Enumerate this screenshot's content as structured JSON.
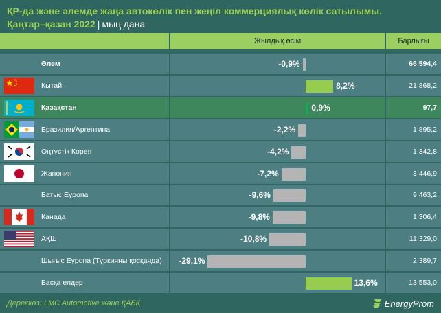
{
  "title": "ҚР-да және әлемде жаңа автокөлік пен жеңіл коммерциялық көлік сатылымы.",
  "period": "Қаңтар–қазан 2022",
  "separator": "|",
  "unit": "мың дана",
  "header": {
    "growth": "Жылдық өсім",
    "total": "Барлығы"
  },
  "source": "Дереккөз: LMC Automotive және ҚАБҚ",
  "logo_text": "EnergyProm",
  "colors": {
    "background": "#2f6660",
    "cell": "#4c7e82",
    "highlight": "#3e875c",
    "header": "#9ccf61",
    "positive_bar": "#96cd4f",
    "negative_bar": "#b4b4b4",
    "kazakhstan_bar": "#1aa55a",
    "title": "#9bd25a"
  },
  "chart_data": {
    "type": "bar",
    "title": "ҚР-да және әлемде жаңа автокөлік пен жеңіл коммерциялық көлік сатылымы.",
    "series": [
      {
        "name": "Жылдық өсім",
        "unit": "%",
        "values": [
          -0.9,
          8.2,
          0.9,
          -2.2,
          -4.2,
          -7.2,
          -9.6,
          -9.8,
          -10.8,
          -29.1,
          13.6
        ]
      },
      {
        "name": "Барлығы",
        "unit": "мың дана",
        "values": [
          66594.4,
          21868.2,
          97.7,
          1895.2,
          1342.8,
          3446.9,
          9463.2,
          1306.4,
          11329.0,
          2389.7,
          13553.0
        ]
      }
    ],
    "categories": [
      "Әлем",
      "Қытай",
      "Қазақстан",
      "Бразилия/Аргентина",
      "Оңтүстік Корея",
      "Жапония",
      "Батыс Еуропа",
      "Канада",
      "АҚШ",
      "Шығыс Еуропа (Түркияны қосқанда)",
      "Басқа елдер"
    ],
    "xlim": [
      -30,
      14
    ]
  },
  "rows": [
    {
      "name": "Әлем",
      "growth": -0.9,
      "pct_label": "-0,9%",
      "total": "66 594,4",
      "flag": "none",
      "bold": true
    },
    {
      "name": "Қытай",
      "growth": 8.2,
      "pct_label": "8,2%",
      "total": "21 868,2",
      "flag": "china-flag-icon"
    },
    {
      "name": "Қазақстан",
      "growth": 0.9,
      "pct_label": "0,9%",
      "total": "97,7",
      "flag": "kazakhstan-flag-icon",
      "bold": true,
      "highlight": true
    },
    {
      "name": "Бразилия/Аргентина",
      "growth": -2.2,
      "pct_label": "-2,2%",
      "total": "1 895,2",
      "flag": "brazil-argentina-flag-icon"
    },
    {
      "name": "Оңтүстік Корея",
      "growth": -4.2,
      "pct_label": "-4,2%",
      "total": "1 342,8",
      "flag": "south-korea-flag-icon"
    },
    {
      "name": "Жапония",
      "growth": -7.2,
      "pct_label": "-7,2%",
      "total": "3 446,9",
      "flag": "japan-flag-icon"
    },
    {
      "name": "Батыс Еуропа",
      "growth": -9.6,
      "pct_label": "-9,6%",
      "total": "9 463,2",
      "flag": "none"
    },
    {
      "name": "Канада",
      "growth": -9.8,
      "pct_label": "-9,8%",
      "total": "1 306,4",
      "flag": "canada-flag-icon"
    },
    {
      "name": "АҚШ",
      "growth": -10.8,
      "pct_label": "-10,8%",
      "total": "11 329,0",
      "flag": "usa-flag-icon"
    },
    {
      "name": "Шығыс Еуропа (Түркияны қосқанда)",
      "growth": -29.1,
      "pct_label": "-29,1%",
      "total": "2 389,7",
      "flag": "none"
    },
    {
      "name": "Басқа елдер",
      "growth": 13.6,
      "pct_label": "13,6%",
      "total": "13 553,0",
      "flag": "none"
    }
  ]
}
